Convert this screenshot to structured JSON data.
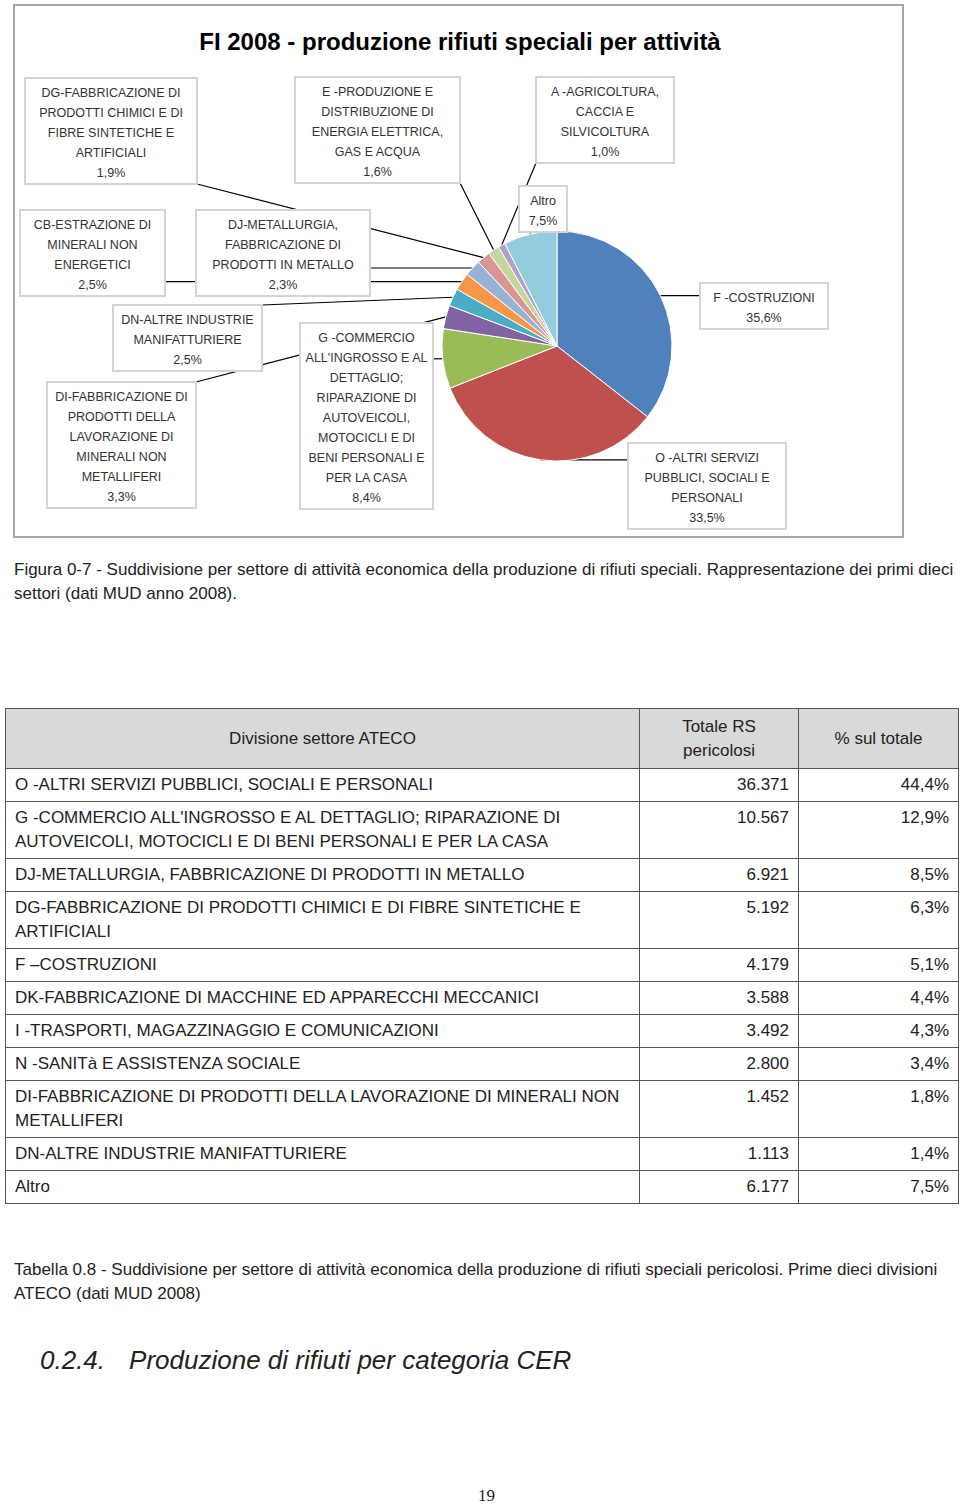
{
  "chart_data": {
    "type": "pie",
    "title": "FI 2008 - produzione rifiuti speciali per attività",
    "categories": [
      "F -COSTRUZIONI",
      "O -ALTRI SERVIZI PUBBLICI, SOCIALI E PERSONALI",
      "G -COMMERCIO ALL'INGROSSO E AL DETTAGLIO; RIPARAZIONE DI AUTOVEICOLI, MOTOCICLI E DI BENI PERSONALI E PER LA CASA",
      "DI-FABBRICAZIONE DI PRODOTTI DELLA LAVORAZIONE DI MINERALI NON METALLIFERI",
      "DN-ALTRE INDUSTRIE MANIFATTURIERE",
      "CB-ESTRAZIONE DI MINERALI NON ENERGETICI",
      "DJ-METALLURGIA, FABBRICAZIONE DI PRODOTTI IN METALLO",
      "DG-FABBRICAZIONE DI PRODOTTI CHIMICI E DI FIBRE SINTETICHE E ARTIFICIALI",
      "E -PRODUZIONE E DISTRIBUZIONE DI ENERGIA ELETTRICA, GAS E ACQUA",
      "A -AGRICOLTURA, CACCIA E SILVICOLTURA",
      "Altro"
    ],
    "values": [
      35.6,
      33.5,
      8.4,
      3.3,
      2.5,
      2.5,
      2.3,
      1.9,
      1.6,
      1.0,
      7.5
    ],
    "value_labels": [
      "35,6%",
      "33,5%",
      "8,4%",
      "3,3%",
      "2,5%",
      "2,5%",
      "2,3%",
      "1,9%",
      "1,6%",
      "1,0%",
      "7,5%"
    ],
    "colors": [
      "#4f81bd",
      "#c0504d",
      "#9bbb59",
      "#8064a2",
      "#4bacc6",
      "#f79646",
      "#95b3d7",
      "#da9694",
      "#c3d69b",
      "#b1a0c7",
      "#93cddd"
    ],
    "data_labels": true
  },
  "figure_caption": "Figura 0-7 - Suddivisione per settore di attività economica della produzione di rifiuti speciali. Rappresentazione dei primi dieci settori (dati MUD anno 2008).",
  "table": {
    "header": [
      "Divisione settore ATECO",
      "Totale RS pericolosi",
      "% sul totale"
    ],
    "rows": [
      [
        "O -ALTRI SERVIZI PUBBLICI, SOCIALI E PERSONALI",
        "36.371",
        "44,4%"
      ],
      [
        "G -COMMERCIO ALL'INGROSSO E AL DETTAGLIO; RIPARAZIONE DI AUTOVEICOLI, MOTOCICLI E DI BENI PERSONALI E PER LA CASA",
        "10.567",
        "12,9%"
      ],
      [
        "DJ-METALLURGIA, FABBRICAZIONE DI PRODOTTI IN METALLO",
        "6.921",
        "8,5%"
      ],
      [
        "DG-FABBRICAZIONE DI PRODOTTI CHIMICI E DI FIBRE SINTETICHE E ARTIFICIALI",
        "5.192",
        "6,3%"
      ],
      [
        "F –COSTRUZIONI",
        "4.179",
        "5,1%"
      ],
      [
        "DK-FABBRICAZIONE DI MACCHINE ED APPARECCHI MECCANICI",
        "3.588",
        "4,4%"
      ],
      [
        "I -TRASPORTI, MAGAZZINAGGIO E COMUNICAZIONI",
        "3.492",
        "4,3%"
      ],
      [
        "N -SANITà E ASSISTENZA SOCIALE",
        "2.800",
        "3,4%"
      ],
      [
        "DI-FABBRICAZIONE DI PRODOTTI DELLA LAVORAZIONE DI MINERALI NON METALLIFERI",
        "1.452",
        "1,8%"
      ],
      [
        "DN-ALTRE INDUSTRIE MANIFATTURIERE",
        "1.113",
        "1,4%"
      ],
      [
        "Altro",
        "6.177",
        "7,5%"
      ]
    ]
  },
  "table_caption": "Tabella 0.8 - Suddivisione per settore di attività economica della produzione di rifiuti speciali pericolosi. Prime dieci divisioni ATECO (dati MUD 2008)",
  "heading": {
    "number": "0.2.4.",
    "text": "Produzione di rifiuti per categoria CER"
  },
  "page_number": "19"
}
